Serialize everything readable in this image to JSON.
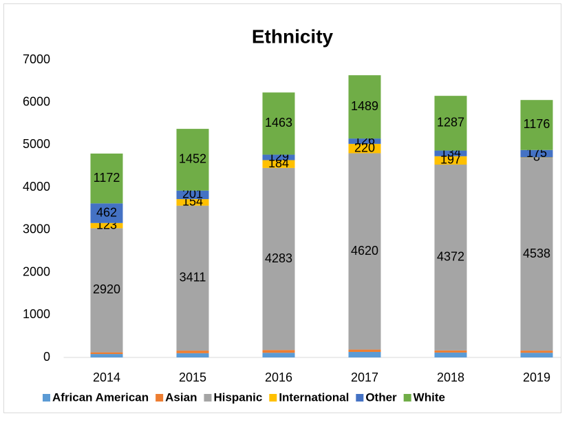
{
  "chart_data": {
    "type": "bar",
    "stacked": true,
    "title": "Ethnicity",
    "categories": [
      "2014",
      "2015",
      "2016",
      "2017",
      "2018",
      "2019"
    ],
    "series": [
      {
        "name": "African American",
        "color": "#5b9bd5",
        "data_labels": false,
        "values": [
          80,
          100,
          110,
          130,
          115,
          110
        ]
      },
      {
        "name": "Asian",
        "color": "#ed7d31",
        "data_labels": false,
        "values": [
          40,
          60,
          65,
          55,
          50,
          50
        ]
      },
      {
        "name": "Hispanic",
        "color": "#a5a5a5",
        "data_labels": true,
        "values": [
          2920,
          3411,
          4283,
          4620,
          4372,
          4538
        ]
      },
      {
        "name": "International",
        "color": "#ffc000",
        "data_labels": true,
        "values": [
          123,
          154,
          184,
          220,
          197,
          8
        ]
      },
      {
        "name": "Other",
        "color": "#4472c4",
        "data_labels": true,
        "values": [
          462,
          201,
          129,
          126,
          134,
          175
        ]
      },
      {
        "name": "White",
        "color": "#70ad47",
        "data_labels": true,
        "values": [
          1172,
          1452,
          1463,
          1489,
          1287,
          1176
        ]
      }
    ],
    "ylim": [
      0,
      7000
    ],
    "yticks": [
      0,
      1000,
      2000,
      3000,
      4000,
      5000,
      6000,
      7000
    ],
    "grid": false,
    "legend": "bottom"
  }
}
